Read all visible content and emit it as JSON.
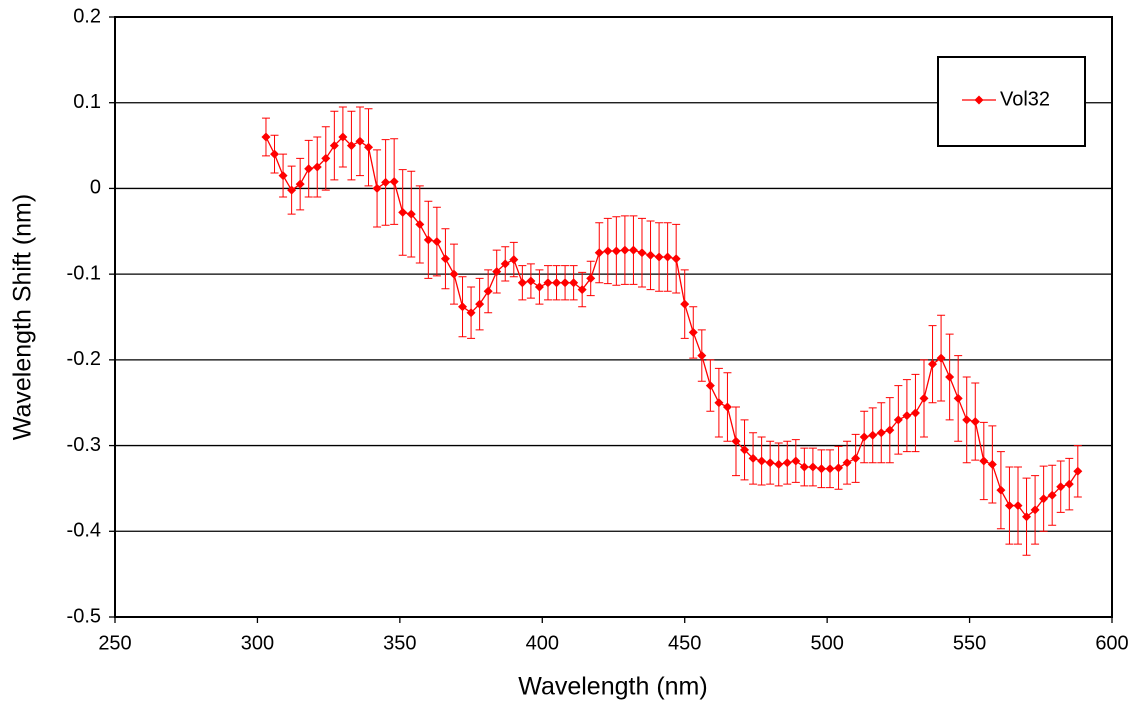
{
  "chart_data": {
    "type": "line",
    "x_label": "Wavelength (nm)",
    "y_label": "Wavelength Shift (nm)",
    "x": [
      303,
      306,
      309,
      312,
      315,
      318,
      321,
      324,
      327,
      330,
      333,
      336,
      339,
      342,
      345,
      348,
      351,
      354,
      357,
      360,
      363,
      366,
      369,
      372,
      375,
      378,
      381,
      384,
      387,
      390,
      393,
      396,
      399,
      402,
      405,
      408,
      411,
      414,
      417,
      420,
      423,
      426,
      429,
      432,
      435,
      438,
      441,
      444,
      447,
      450,
      453,
      456,
      459,
      462,
      465,
      468,
      471,
      474,
      477,
      480,
      483,
      486,
      489,
      492,
      495,
      498,
      501,
      504,
      507,
      510,
      513,
      516,
      519,
      522,
      525,
      528,
      531,
      534,
      537,
      540,
      543,
      546,
      549,
      552,
      555,
      558,
      561,
      564,
      567,
      570,
      573,
      576,
      579,
      582,
      585,
      588
    ],
    "series": [
      {
        "name": "Vol32",
        "color": "#ff0000",
        "values": [
          0.06,
          0.04,
          0.015,
          -0.002,
          0.005,
          0.023,
          0.025,
          0.035,
          0.05,
          0.06,
          0.05,
          0.055,
          0.048,
          0.0,
          0.007,
          0.008,
          -0.028,
          -0.03,
          -0.042,
          -0.06,
          -0.062,
          -0.082,
          -0.1,
          -0.138,
          -0.145,
          -0.135,
          -0.12,
          -0.097,
          -0.088,
          -0.083,
          -0.11,
          -0.108,
          -0.115,
          -0.11,
          -0.11,
          -0.11,
          -0.11,
          -0.118,
          -0.105,
          -0.075,
          -0.073,
          -0.073,
          -0.072,
          -0.072,
          -0.075,
          -0.078,
          -0.08,
          -0.08,
          -0.082,
          -0.135,
          -0.168,
          -0.195,
          -0.23,
          -0.25,
          -0.255,
          -0.295,
          -0.305,
          -0.315,
          -0.318,
          -0.32,
          -0.322,
          -0.32,
          -0.318,
          -0.325,
          -0.325,
          -0.327,
          -0.327,
          -0.326,
          -0.32,
          -0.315,
          -0.29,
          -0.288,
          -0.285,
          -0.282,
          -0.27,
          -0.265,
          -0.262,
          -0.245,
          -0.205,
          -0.198,
          -0.22,
          -0.245,
          -0.27,
          -0.272,
          -0.318,
          -0.322,
          -0.352,
          -0.37,
          -0.37,
          -0.383,
          -0.375,
          -0.362,
          -0.358,
          -0.348,
          -0.345,
          -0.33
        ],
        "errors": [
          0.022,
          0.022,
          0.025,
          0.028,
          0.03,
          0.033,
          0.035,
          0.037,
          0.04,
          0.035,
          0.04,
          0.04,
          0.045,
          0.045,
          0.05,
          0.05,
          0.05,
          0.05,
          0.045,
          0.045,
          0.04,
          0.035,
          0.035,
          0.035,
          0.03,
          0.03,
          0.025,
          0.025,
          0.02,
          0.02,
          0.02,
          0.02,
          0.02,
          0.02,
          0.02,
          0.02,
          0.02,
          0.02,
          0.02,
          0.035,
          0.038,
          0.04,
          0.04,
          0.04,
          0.04,
          0.04,
          0.04,
          0.04,
          0.04,
          0.04,
          0.03,
          0.03,
          0.03,
          0.04,
          0.04,
          0.04,
          0.035,
          0.03,
          0.028,
          0.025,
          0.025,
          0.025,
          0.025,
          0.022,
          0.022,
          0.022,
          0.022,
          0.025,
          0.025,
          0.028,
          0.03,
          0.032,
          0.035,
          0.038,
          0.04,
          0.042,
          0.045,
          0.045,
          0.045,
          0.05,
          0.05,
          0.05,
          0.05,
          0.045,
          0.045,
          0.045,
          0.045,
          0.045,
          0.045,
          0.045,
          0.04,
          0.038,
          0.035,
          0.03,
          0.03,
          0.03
        ]
      }
    ],
    "xlim": [
      250,
      600
    ],
    "xticks": [
      250,
      300,
      350,
      400,
      450,
      500,
      550,
      600
    ],
    "ylim": [
      -0.5,
      0.2
    ],
    "yticks": [
      -0.5,
      -0.4,
      -0.3,
      -0.2,
      -0.1,
      0,
      0.1,
      0.2
    ],
    "grid": true,
    "legend": "top-right"
  }
}
